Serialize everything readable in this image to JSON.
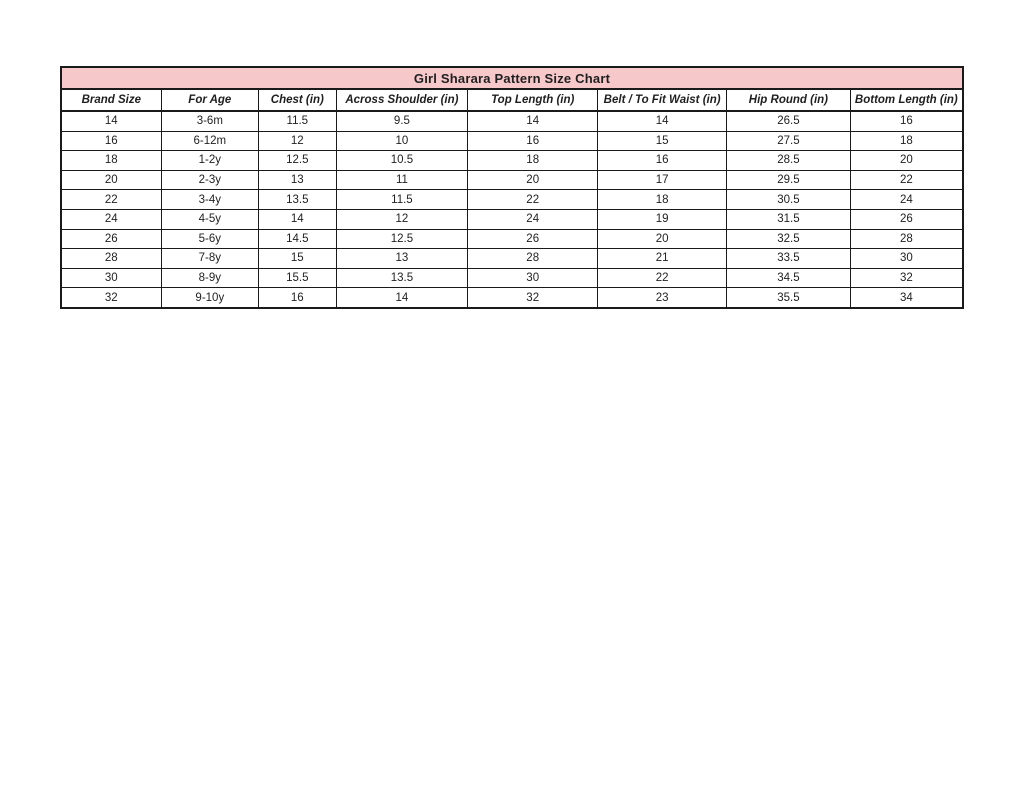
{
  "chart_data": {
    "type": "table",
    "title": "Girl Sharara Pattern Size Chart",
    "columns": [
      "Brand Size",
      "For Age",
      "Chest (in)",
      "Across Shoulder (in)",
      "Top Length (in)",
      "Belt / To Fit Waist (in)",
      "Hip Round (in)",
      "Bottom Length (in)"
    ],
    "rows": [
      [
        "14",
        "3-6m",
        "11.5",
        "9.5",
        "14",
        "14",
        "26.5",
        "16"
      ],
      [
        "16",
        "6-12m",
        "12",
        "10",
        "16",
        "15",
        "27.5",
        "18"
      ],
      [
        "18",
        "1-2y",
        "12.5",
        "10.5",
        "18",
        "16",
        "28.5",
        "20"
      ],
      [
        "20",
        "2-3y",
        "13",
        "11",
        "20",
        "17",
        "29.5",
        "22"
      ],
      [
        "22",
        "3-4y",
        "13.5",
        "11.5",
        "22",
        "18",
        "30.5",
        "24"
      ],
      [
        "24",
        "4-5y",
        "14",
        "12",
        "24",
        "19",
        "31.5",
        "26"
      ],
      [
        "26",
        "5-6y",
        "14.5",
        "12.5",
        "26",
        "20",
        "32.5",
        "28"
      ],
      [
        "28",
        "7-8y",
        "15",
        "13",
        "28",
        "21",
        "33.5",
        "30"
      ],
      [
        "30",
        "8-9y",
        "15.5",
        "13.5",
        "30",
        "22",
        "34.5",
        "32"
      ],
      [
        "32",
        "9-10y",
        "16",
        "14",
        "32",
        "23",
        "35.5",
        "34"
      ]
    ],
    "layout": {
      "legend": "none",
      "grid": "all-cell-borders"
    }
  },
  "colors": {
    "title_bg": "#f6c8ca",
    "border": "#1a1a1a",
    "text": "#1f1f1f",
    "page_bg": "#ffffff"
  }
}
